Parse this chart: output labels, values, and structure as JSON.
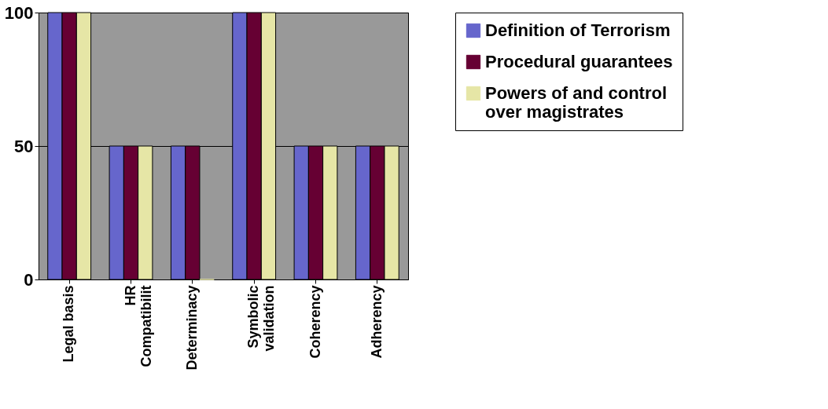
{
  "chart_data": {
    "type": "bar",
    "categories": [
      "Legal basis",
      "HR\nCompatibilit",
      "Determinacy",
      "Symbolic\nvalidation",
      "Coherency",
      "Adherency"
    ],
    "series": [
      {
        "name": "Definition of Terrorism",
        "color": "#6666cc",
        "values": [
          100,
          50,
          50,
          100,
          50,
          50
        ]
      },
      {
        "name": "Procedural guarantees",
        "color": "#660033",
        "values": [
          100,
          50,
          50,
          100,
          50,
          50
        ]
      },
      {
        "name": "Powers of and control\nover magistrates",
        "color": "#e6e6a6",
        "values": [
          100,
          50,
          0,
          100,
          50,
          50
        ]
      }
    ],
    "ylim": [
      0,
      100
    ],
    "yticks": [
      0,
      50,
      100
    ],
    "grid": "y",
    "legend": "right"
  }
}
